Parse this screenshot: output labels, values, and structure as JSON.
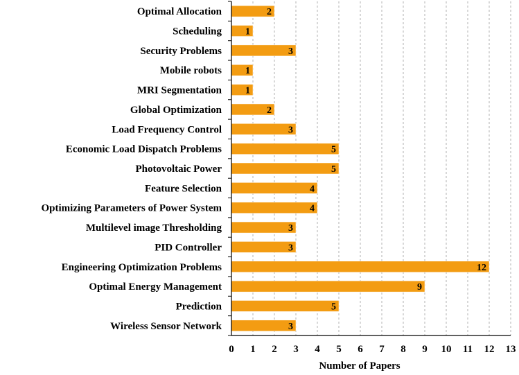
{
  "chart_data": {
    "type": "bar",
    "orientation": "horizontal",
    "categories": [
      "Optimal Allocation",
      "Scheduling",
      "Security Problems",
      "Mobile robots",
      "MRI Segmentation",
      "Global Optimization",
      "Load Frequency Control",
      "Economic Load Dispatch Problems",
      "Photovoltaic Power",
      "Feature Selection",
      "Optimizing Parameters of Power System",
      "Multilevel image Thresholding",
      "PID Controller",
      "Engineering Optimization Problems",
      "Optimal Energy Management",
      "Prediction",
      "Wireless Sensor Network"
    ],
    "values": [
      2,
      1,
      3,
      1,
      1,
      2,
      3,
      5,
      5,
      4,
      4,
      3,
      3,
      12,
      9,
      5,
      3
    ],
    "xlabel": "Number of Papers",
    "ylabel": "",
    "xlim": [
      0,
      13
    ],
    "xticks": [
      "0",
      "1",
      "2",
      "3",
      "4",
      "5",
      "6",
      "7",
      "8",
      "9",
      "10",
      "11",
      "12",
      "13"
    ],
    "grid": "vertical-dashed",
    "legend": "none",
    "bar_color": "#F39C12",
    "bar_border_color": "#ffffff",
    "grid_color": "#b0b0b0",
    "axis_color": "#000000"
  }
}
